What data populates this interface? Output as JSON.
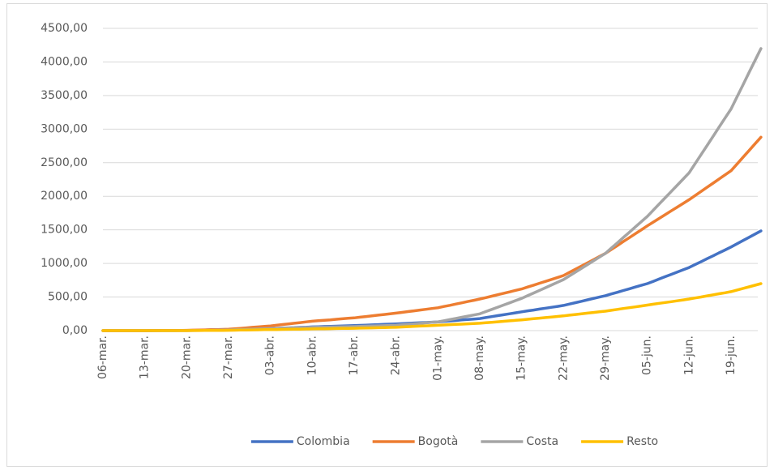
{
  "chart_data": {
    "type": "line",
    "categories": [
      "06-mar.",
      null,
      null,
      null,
      null,
      null,
      null,
      "13-mar.",
      null,
      null,
      null,
      null,
      null,
      null,
      "20-mar.",
      null,
      null,
      null,
      null,
      null,
      null,
      "27-mar.",
      null,
      null,
      null,
      null,
      null,
      null,
      "03-abr.",
      null,
      null,
      null,
      null,
      null,
      null,
      "10-abr.",
      null,
      null,
      null,
      null,
      null,
      null,
      "17-abr.",
      null,
      null,
      null,
      null,
      null,
      null,
      "24-abr.",
      null,
      null,
      null,
      null,
      null,
      null,
      "01-may.",
      null,
      null,
      null,
      null,
      null,
      null,
      "08-may.",
      null,
      null,
      null,
      null,
      null,
      null,
      "15-may.",
      null,
      null,
      null,
      null,
      null,
      null,
      "22-may.",
      null,
      null,
      null,
      null,
      null,
      null,
      "29-may.",
      null,
      null,
      null,
      null,
      null,
      null,
      "05-jun.",
      null,
      null,
      null,
      null,
      null,
      null,
      "12-jun.",
      null,
      null,
      null,
      null,
      null,
      null,
      "19-jun.",
      null,
      null,
      null,
      null,
      null
    ],
    "series": [
      {
        "name": "Colombia",
        "color": "#4472c4",
        "values": [
          0,
          0,
          0,
          0,
          0,
          0,
          0,
          0,
          0,
          1,
          1,
          1,
          1,
          2,
          2,
          3,
          4,
          5,
          7,
          8,
          9,
          10,
          13,
          16,
          19,
          21,
          24,
          27,
          30,
          34,
          37,
          41,
          44,
          48,
          51,
          55,
          58,
          61,
          64,
          66,
          69,
          72,
          75,
          79,
          82,
          86,
          89,
          93,
          96,
          100,
          104,
          109,
          113,
          117,
          121,
          126,
          130,
          137,
          144,
          151,
          159,
          166,
          173,
          180,
          194,
          209,
          223,
          237,
          251,
          266,
          280,
          294,
          307,
          321,
          334,
          348,
          361,
          375,
          396,
          416,
          437,
          458,
          479,
          499,
          520,
          546,
          571,
          597,
          623,
          649,
          674,
          700,
          734,
          769,
          803,
          837,
          871,
          906,
          940,
          984,
          1027,
          1071,
          1114,
          1158,
          1201,
          1245,
          1293,
          1341,
          1389,
          1437,
          1485
        ]
      },
      {
        "name": "Bogotà",
        "color": "#ed7d31",
        "values": [
          0,
          0,
          0,
          0,
          0,
          0,
          0,
          0,
          1,
          1,
          2,
          3,
          4,
          4,
          5,
          7,
          9,
          11,
          14,
          16,
          18,
          20,
          27,
          34,
          41,
          49,
          56,
          63,
          70,
          80,
          90,
          100,
          110,
          120,
          130,
          140,
          147,
          154,
          161,
          169,
          176,
          183,
          190,
          200,
          210,
          220,
          230,
          240,
          250,
          260,
          271,
          283,
          294,
          306,
          317,
          329,
          340,
          359,
          377,
          396,
          414,
          433,
          451,
          470,
          491,
          513,
          534,
          556,
          577,
          599,
          620,
          649,
          677,
          706,
          734,
          763,
          791,
          820,
          867,
          914,
          961,
          1009,
          1056,
          1103,
          1150,
          1209,
          1267,
          1326,
          1384,
          1443,
          1501,
          1560,
          1616,
          1671,
          1727,
          1783,
          1839,
          1894,
          1950,
          2011,
          2073,
          2134,
          2196,
          2257,
          2319,
          2380,
          2480,
          2580,
          2680,
          2780,
          2880
        ]
      },
      {
        "name": "Costa",
        "color": "#a5a5a5",
        "values": [
          0,
          0,
          0,
          0,
          0,
          0,
          0,
          0,
          0,
          0,
          0,
          0,
          0,
          0,
          0,
          1,
          3,
          4,
          6,
          7,
          9,
          10,
          13,
          16,
          19,
          21,
          24,
          27,
          30,
          33,
          36,
          39,
          41,
          44,
          47,
          50,
          51,
          53,
          54,
          56,
          57,
          59,
          60,
          63,
          66,
          69,
          71,
          74,
          77,
          80,
          87,
          94,
          101,
          109,
          116,
          123,
          130,
          147,
          164,
          181,
          199,
          216,
          233,
          250,
          283,
          316,
          349,
          381,
          414,
          447,
          480,
          520,
          560,
          600,
          640,
          680,
          720,
          760,
          816,
          871,
          927,
          983,
          1039,
          1094,
          1150,
          1229,
          1307,
          1386,
          1464,
          1543,
          1621,
          1700,
          1793,
          1886,
          1979,
          2071,
          2164,
          2257,
          2350,
          2486,
          2621,
          2757,
          2893,
          3029,
          3164,
          3300,
          3480,
          3660,
          3840,
          4020,
          4200
        ]
      },
      {
        "name": "Resto",
        "color": "#ffc000",
        "values": [
          0,
          0,
          0,
          0,
          0,
          0,
          0,
          0,
          0,
          0,
          0,
          0,
          0,
          0,
          0,
          1,
          1,
          2,
          3,
          4,
          4,
          5,
          6,
          8,
          9,
          11,
          12,
          14,
          15,
          16,
          18,
          19,
          21,
          22,
          24,
          25,
          26,
          28,
          29,
          31,
          32,
          34,
          35,
          37,
          39,
          41,
          44,
          46,
          48,
          50,
          54,
          59,
          63,
          67,
          71,
          76,
          80,
          84,
          89,
          93,
          97,
          101,
          106,
          110,
          117,
          124,
          131,
          139,
          146,
          153,
          160,
          169,
          177,
          186,
          194,
          203,
          211,
          220,
          230,
          240,
          250,
          260,
          270,
          280,
          290,
          303,
          316,
          329,
          341,
          354,
          367,
          380,
          393,
          406,
          419,
          431,
          444,
          457,
          470,
          486,
          501,
          517,
          533,
          549,
          564,
          580,
          604,
          628,
          652,
          676,
          700
        ]
      }
    ],
    "ylim": [
      0,
      4500
    ],
    "yticks": [
      {
        "value": 0,
        "label": "0,00"
      },
      {
        "value": 500,
        "label": "500,00"
      },
      {
        "value": 1000,
        "label": "1000,00"
      },
      {
        "value": 1500,
        "label": "1500,00"
      },
      {
        "value": 2000,
        "label": "2000,00"
      },
      {
        "value": 2500,
        "label": "2500,00"
      },
      {
        "value": 3000,
        "label": "3000,00"
      },
      {
        "value": 3500,
        "label": "3500,00"
      },
      {
        "value": 4000,
        "label": "4000,00"
      },
      {
        "value": 4500,
        "label": "4500,00"
      }
    ],
    "grid": true,
    "legend": "bottom"
  }
}
